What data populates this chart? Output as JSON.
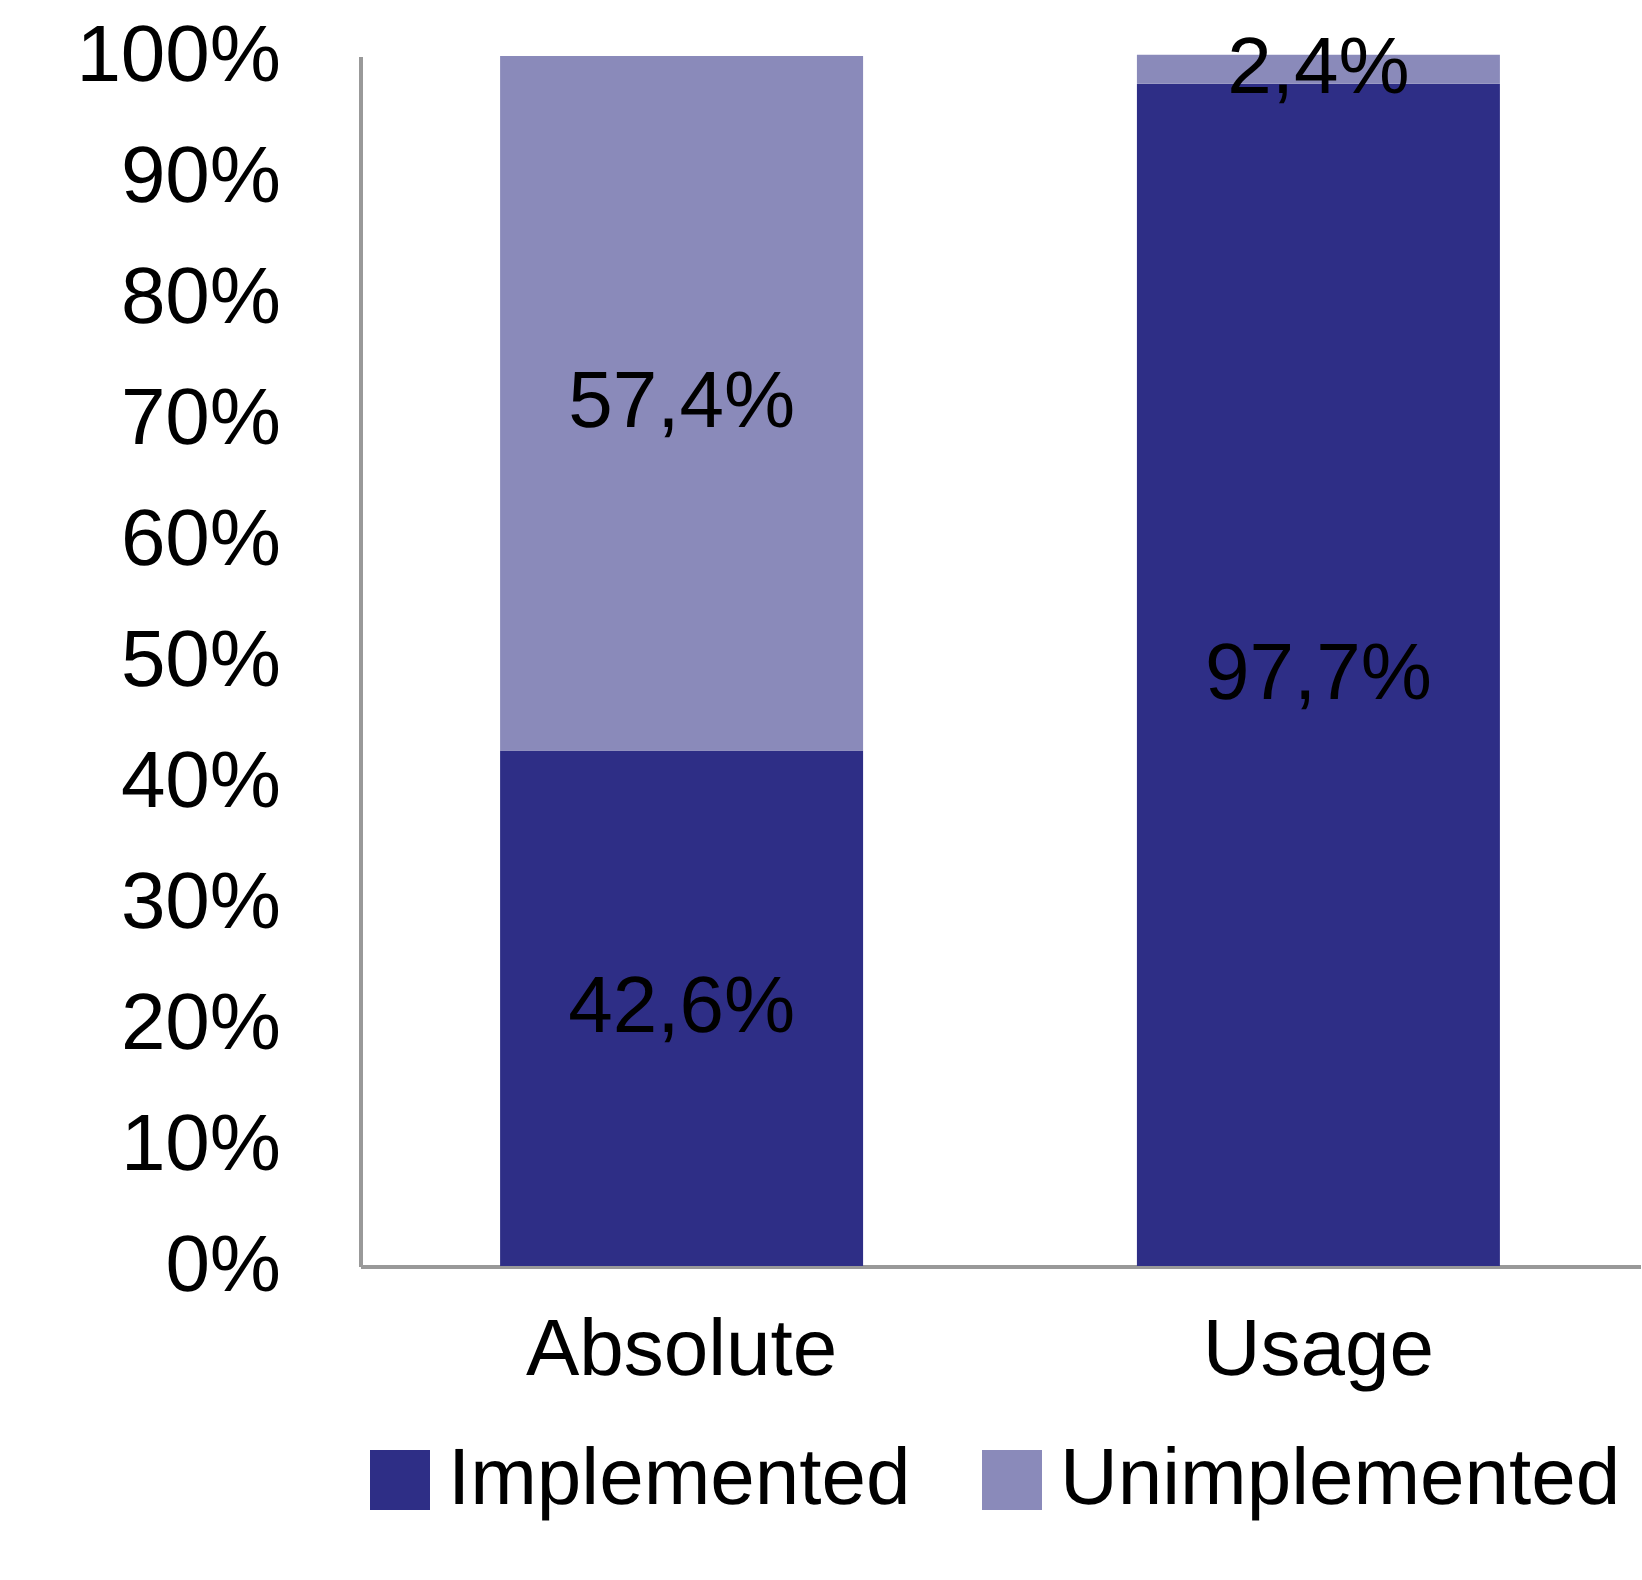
{
  "chart_data": {
    "type": "bar",
    "stacked": true,
    "categories": [
      "Absolute",
      "Usage"
    ],
    "series": [
      {
        "name": "Implemented",
        "color": "#2e2e86",
        "values": [
          42.6,
          97.7
        ],
        "value_labels": [
          "42,6%",
          "97,7%"
        ]
      },
      {
        "name": "Unimplemented",
        "color": "#8a8aba",
        "values": [
          57.4,
          2.4
        ],
        "value_labels": [
          "57,4%",
          "2,4%"
        ]
      }
    ],
    "ylim": [
      0,
      100
    ],
    "yticks": [
      {
        "value": 0,
        "label": "0%"
      },
      {
        "value": 10,
        "label": "10%"
      },
      {
        "value": 20,
        "label": "20%"
      },
      {
        "value": 30,
        "label": "30%"
      },
      {
        "value": 40,
        "label": "40%"
      },
      {
        "value": 50,
        "label": "50%"
      },
      {
        "value": 60,
        "label": "60%"
      },
      {
        "value": 70,
        "label": "70%"
      },
      {
        "value": 80,
        "label": "80%"
      },
      {
        "value": 90,
        "label": "90%"
      },
      {
        "value": 100,
        "label": "100%"
      }
    ],
    "grid": false,
    "legend": "bottom"
  }
}
